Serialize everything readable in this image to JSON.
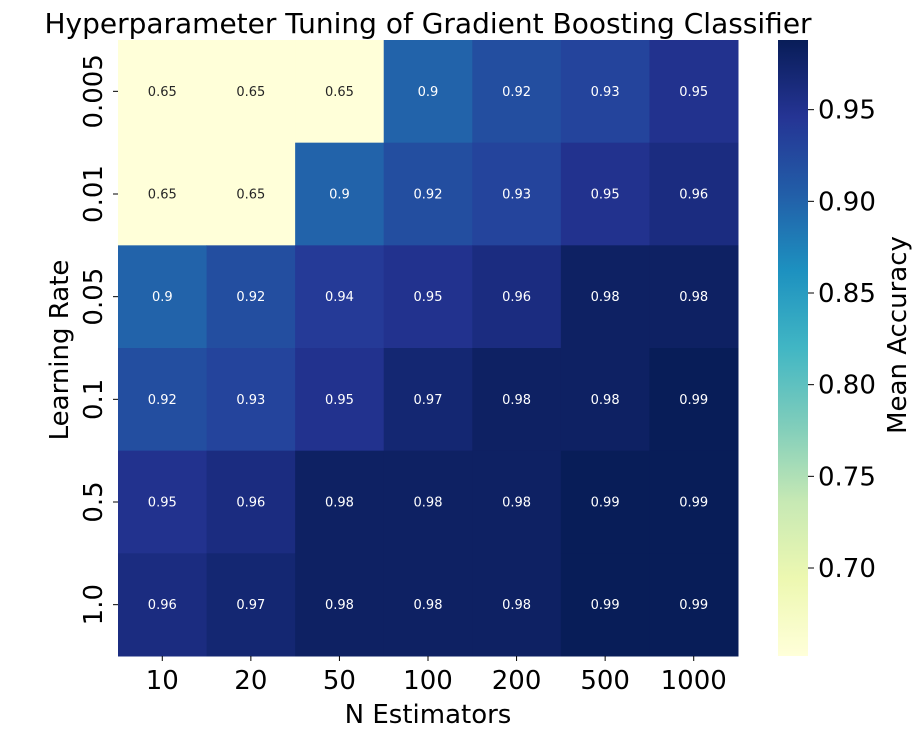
{
  "chart_data": {
    "type": "heatmap",
    "title": "Hyperparameter Tuning of Gradient Boosting Classifier",
    "xlabel": "N Estimators",
    "ylabel": "Learning Rate",
    "x_categories": [
      "10",
      "20",
      "50",
      "100",
      "200",
      "500",
      "1000"
    ],
    "y_categories": [
      "0.005",
      "0.01",
      "0.05",
      "0.1",
      "0.5",
      "1.0"
    ],
    "values": [
      [
        0.65,
        0.65,
        0.65,
        0.9,
        0.92,
        0.93,
        0.95
      ],
      [
        0.65,
        0.65,
        0.9,
        0.92,
        0.93,
        0.95,
        0.96
      ],
      [
        0.9,
        0.92,
        0.94,
        0.95,
        0.96,
        0.98,
        0.98
      ],
      [
        0.92,
        0.93,
        0.95,
        0.97,
        0.98,
        0.98,
        0.99
      ],
      [
        0.95,
        0.96,
        0.98,
        0.98,
        0.98,
        0.99,
        0.99
      ],
      [
        0.96,
        0.97,
        0.98,
        0.98,
        0.98,
        0.99,
        0.99
      ]
    ],
    "colorbar": {
      "label": "Mean Accuracy",
      "colormap": "YlGnBu",
      "vmin": 0.652,
      "vmax": 0.988,
      "ticks": [
        "0.70",
        "0.75",
        "0.80",
        "0.85",
        "0.90",
        "0.95"
      ]
    }
  }
}
